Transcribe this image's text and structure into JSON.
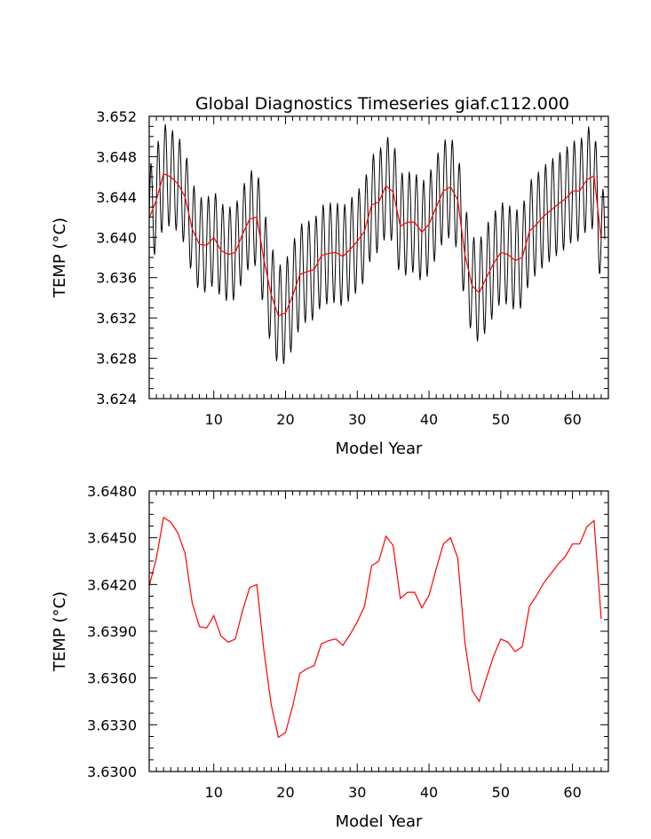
{
  "chart_data": [
    {
      "type": "line",
      "title": "Global Diagnostics Timeseries giaf.c112.000",
      "xlabel": "Model Year",
      "ylabel": "TEMP (°C)",
      "xlim": [
        1,
        65
      ],
      "ylim": [
        3.624,
        3.652
      ],
      "xticks": [
        10,
        20,
        30,
        40,
        50,
        60
      ],
      "xtick_labels": [
        "10",
        "20",
        "30",
        "40",
        "50",
        "60"
      ],
      "yticks": [
        3.624,
        3.628,
        3.632,
        3.636,
        3.64,
        3.644,
        3.648,
        3.652
      ],
      "ytick_labels": [
        "3.624",
        "3.628",
        "3.632",
        "3.636",
        "3.640",
        "3.644",
        "3.648",
        "3.652"
      ],
      "grid": false,
      "series": [
        {
          "color": "#000000",
          "kind": "monthly",
          "start_year": 1,
          "samples_per_year": 12,
          "annual_amplitude": [
            0.005,
            0.0052,
            0.005,
            0.0048,
            0.0048,
            0.0047,
            0.0047,
            0.0047,
            0.0047,
            0.0047,
            0.0047,
            0.0047,
            0.0047,
            0.0047,
            0.0048,
            0.005,
            0.0052,
            0.005,
            0.005,
            0.0052,
            0.0052,
            0.005,
            0.005,
            0.005,
            0.005,
            0.005,
            0.005,
            0.005,
            0.005,
            0.005,
            0.005,
            0.005,
            0.005,
            0.005,
            0.0052,
            0.0052,
            0.005,
            0.005,
            0.005,
            0.005,
            0.005,
            0.005,
            0.005,
            0.005,
            0.005,
            0.005,
            0.0052,
            0.0052,
            0.005,
            0.005,
            0.005,
            0.005,
            0.005,
            0.005,
            0.005,
            0.005,
            0.005,
            0.005,
            0.005,
            0.005,
            0.005,
            0.0052,
            0.005,
            0.005
          ]
        },
        {
          "color": "#ff0000",
          "kind": "annual",
          "x": [
            1,
            2,
            3,
            4,
            5,
            6,
            7,
            8,
            9,
            10,
            11,
            12,
            13,
            14,
            15,
            16,
            17,
            18,
            19,
            20,
            21,
            22,
            23,
            24,
            25,
            26,
            27,
            28,
            29,
            30,
            31,
            32,
            33,
            34,
            35,
            36,
            37,
            38,
            39,
            40,
            41,
            42,
            43,
            44,
            45,
            46,
            47,
            48,
            49,
            50,
            51,
            52,
            53,
            54,
            55,
            56,
            57,
            58,
            59,
            60,
            61,
            62,
            63,
            64
          ],
          "y": [
            3.6419,
            3.6437,
            3.6463,
            3.646,
            3.6453,
            3.644,
            3.6408,
            3.6393,
            3.6392,
            3.64,
            3.6387,
            3.6383,
            3.6385,
            3.6403,
            3.6418,
            3.642,
            3.6377,
            3.6343,
            3.6322,
            3.6325,
            3.6342,
            3.6363,
            3.6366,
            3.6368,
            3.6382,
            3.6384,
            3.6385,
            3.6381,
            3.6388,
            3.6396,
            3.6406,
            3.6432,
            3.6435,
            3.6451,
            3.6445,
            3.6411,
            3.6415,
            3.6415,
            3.6405,
            3.6413,
            3.643,
            3.6446,
            3.645,
            3.6437,
            3.6383,
            3.6352,
            3.6345,
            3.636,
            3.6374,
            3.6385,
            3.6383,
            3.6377,
            3.638,
            3.6406,
            3.6413,
            3.6421,
            3.6427,
            3.6433,
            3.6438,
            3.6446,
            3.6446,
            3.6457,
            3.6461,
            3.6398
          ]
        }
      ]
    },
    {
      "type": "line",
      "title": "",
      "xlabel": "Model Year",
      "ylabel": "TEMP (°C)",
      "xlim": [
        1,
        65
      ],
      "ylim": [
        3.63,
        3.648
      ],
      "xticks": [
        10,
        20,
        30,
        40,
        50,
        60
      ],
      "xtick_labels": [
        "10",
        "20",
        "30",
        "40",
        "50",
        "60"
      ],
      "yticks": [
        3.63,
        3.633,
        3.636,
        3.639,
        3.642,
        3.645,
        3.648
      ],
      "ytick_labels": [
        "3.6300",
        "3.6330",
        "3.6360",
        "3.6390",
        "3.6420",
        "3.6450",
        "3.6480"
      ],
      "grid": false,
      "series": [
        {
          "color": "#ff0000",
          "kind": "annual",
          "x": [
            1,
            2,
            3,
            4,
            5,
            6,
            7,
            8,
            9,
            10,
            11,
            12,
            13,
            14,
            15,
            16,
            17,
            18,
            19,
            20,
            21,
            22,
            23,
            24,
            25,
            26,
            27,
            28,
            29,
            30,
            31,
            32,
            33,
            34,
            35,
            36,
            37,
            38,
            39,
            40,
            41,
            42,
            43,
            44,
            45,
            46,
            47,
            48,
            49,
            50,
            51,
            52,
            53,
            54,
            55,
            56,
            57,
            58,
            59,
            60,
            61,
            62,
            63,
            64
          ],
          "y": [
            3.6419,
            3.6437,
            3.6463,
            3.646,
            3.6453,
            3.644,
            3.6408,
            3.6393,
            3.6392,
            3.64,
            3.6387,
            3.6383,
            3.6385,
            3.6403,
            3.6418,
            3.642,
            3.6377,
            3.6343,
            3.6322,
            3.6325,
            3.6342,
            3.6363,
            3.6366,
            3.6368,
            3.6382,
            3.6384,
            3.6385,
            3.6381,
            3.6388,
            3.6396,
            3.6406,
            3.6432,
            3.6435,
            3.6451,
            3.6445,
            3.6411,
            3.6415,
            3.6415,
            3.6405,
            3.6413,
            3.643,
            3.6446,
            3.645,
            3.6437,
            3.6383,
            3.6352,
            3.6345,
            3.636,
            3.6374,
            3.6385,
            3.6383,
            3.6377,
            3.638,
            3.6406,
            3.6413,
            3.6421,
            3.6427,
            3.6433,
            3.6438,
            3.6446,
            3.6446,
            3.6457,
            3.6461,
            3.6398
          ]
        }
      ]
    }
  ]
}
